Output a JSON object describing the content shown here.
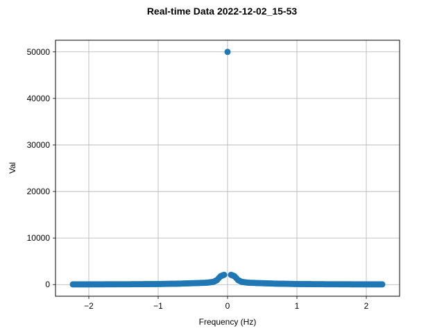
{
  "chart_data": {
    "type": "scatter",
    "title": "Real-time Data 2022-12-02_15-53",
    "xlabel": "Frequency (Hz)",
    "ylabel": "Val",
    "xlim": [
      -2.48,
      2.48
    ],
    "ylim": [
      -2500,
      52500
    ],
    "x_ticks": [
      -2,
      -1,
      0,
      1,
      2
    ],
    "x_tick_labels": [
      "−2",
      "−1",
      "0",
      "1",
      "2"
    ],
    "y_ticks": [
      0,
      10000,
      20000,
      30000,
      40000,
      50000
    ],
    "y_tick_labels": [
      "0",
      "10000",
      "20000",
      "30000",
      "40000",
      "50000"
    ],
    "grid": true,
    "legend": false,
    "marker_color": "#1f77b4",
    "series": [
      {
        "points": [
          [
            -2.23,
            50
          ],
          [
            -2.0,
            50
          ],
          [
            -1.8,
            60
          ],
          [
            -1.6,
            70
          ],
          [
            -1.4,
            80
          ],
          [
            -1.2,
            100
          ],
          [
            -1.0,
            120
          ],
          [
            -0.9,
            150
          ],
          [
            -0.8,
            180
          ],
          [
            -0.7,
            200
          ],
          [
            -0.6,
            250
          ],
          [
            -0.5,
            300
          ],
          [
            -0.4,
            350
          ],
          [
            -0.3,
            400
          ],
          [
            -0.2,
            600
          ],
          [
            -0.15,
            1000
          ],
          [
            -0.1,
            1800
          ],
          [
            -0.05,
            2100
          ],
          [
            0.0,
            50000
          ],
          [
            0.05,
            2100
          ],
          [
            0.1,
            1800
          ],
          [
            0.15,
            1000
          ],
          [
            0.2,
            600
          ],
          [
            0.3,
            400
          ],
          [
            0.4,
            350
          ],
          [
            0.5,
            300
          ],
          [
            0.6,
            250
          ],
          [
            0.7,
            200
          ],
          [
            0.8,
            180
          ],
          [
            0.9,
            150
          ],
          [
            1.0,
            120
          ],
          [
            1.2,
            100
          ],
          [
            1.4,
            80
          ],
          [
            1.6,
            70
          ],
          [
            1.8,
            60
          ],
          [
            2.0,
            50
          ],
          [
            2.23,
            50
          ]
        ]
      }
    ]
  }
}
